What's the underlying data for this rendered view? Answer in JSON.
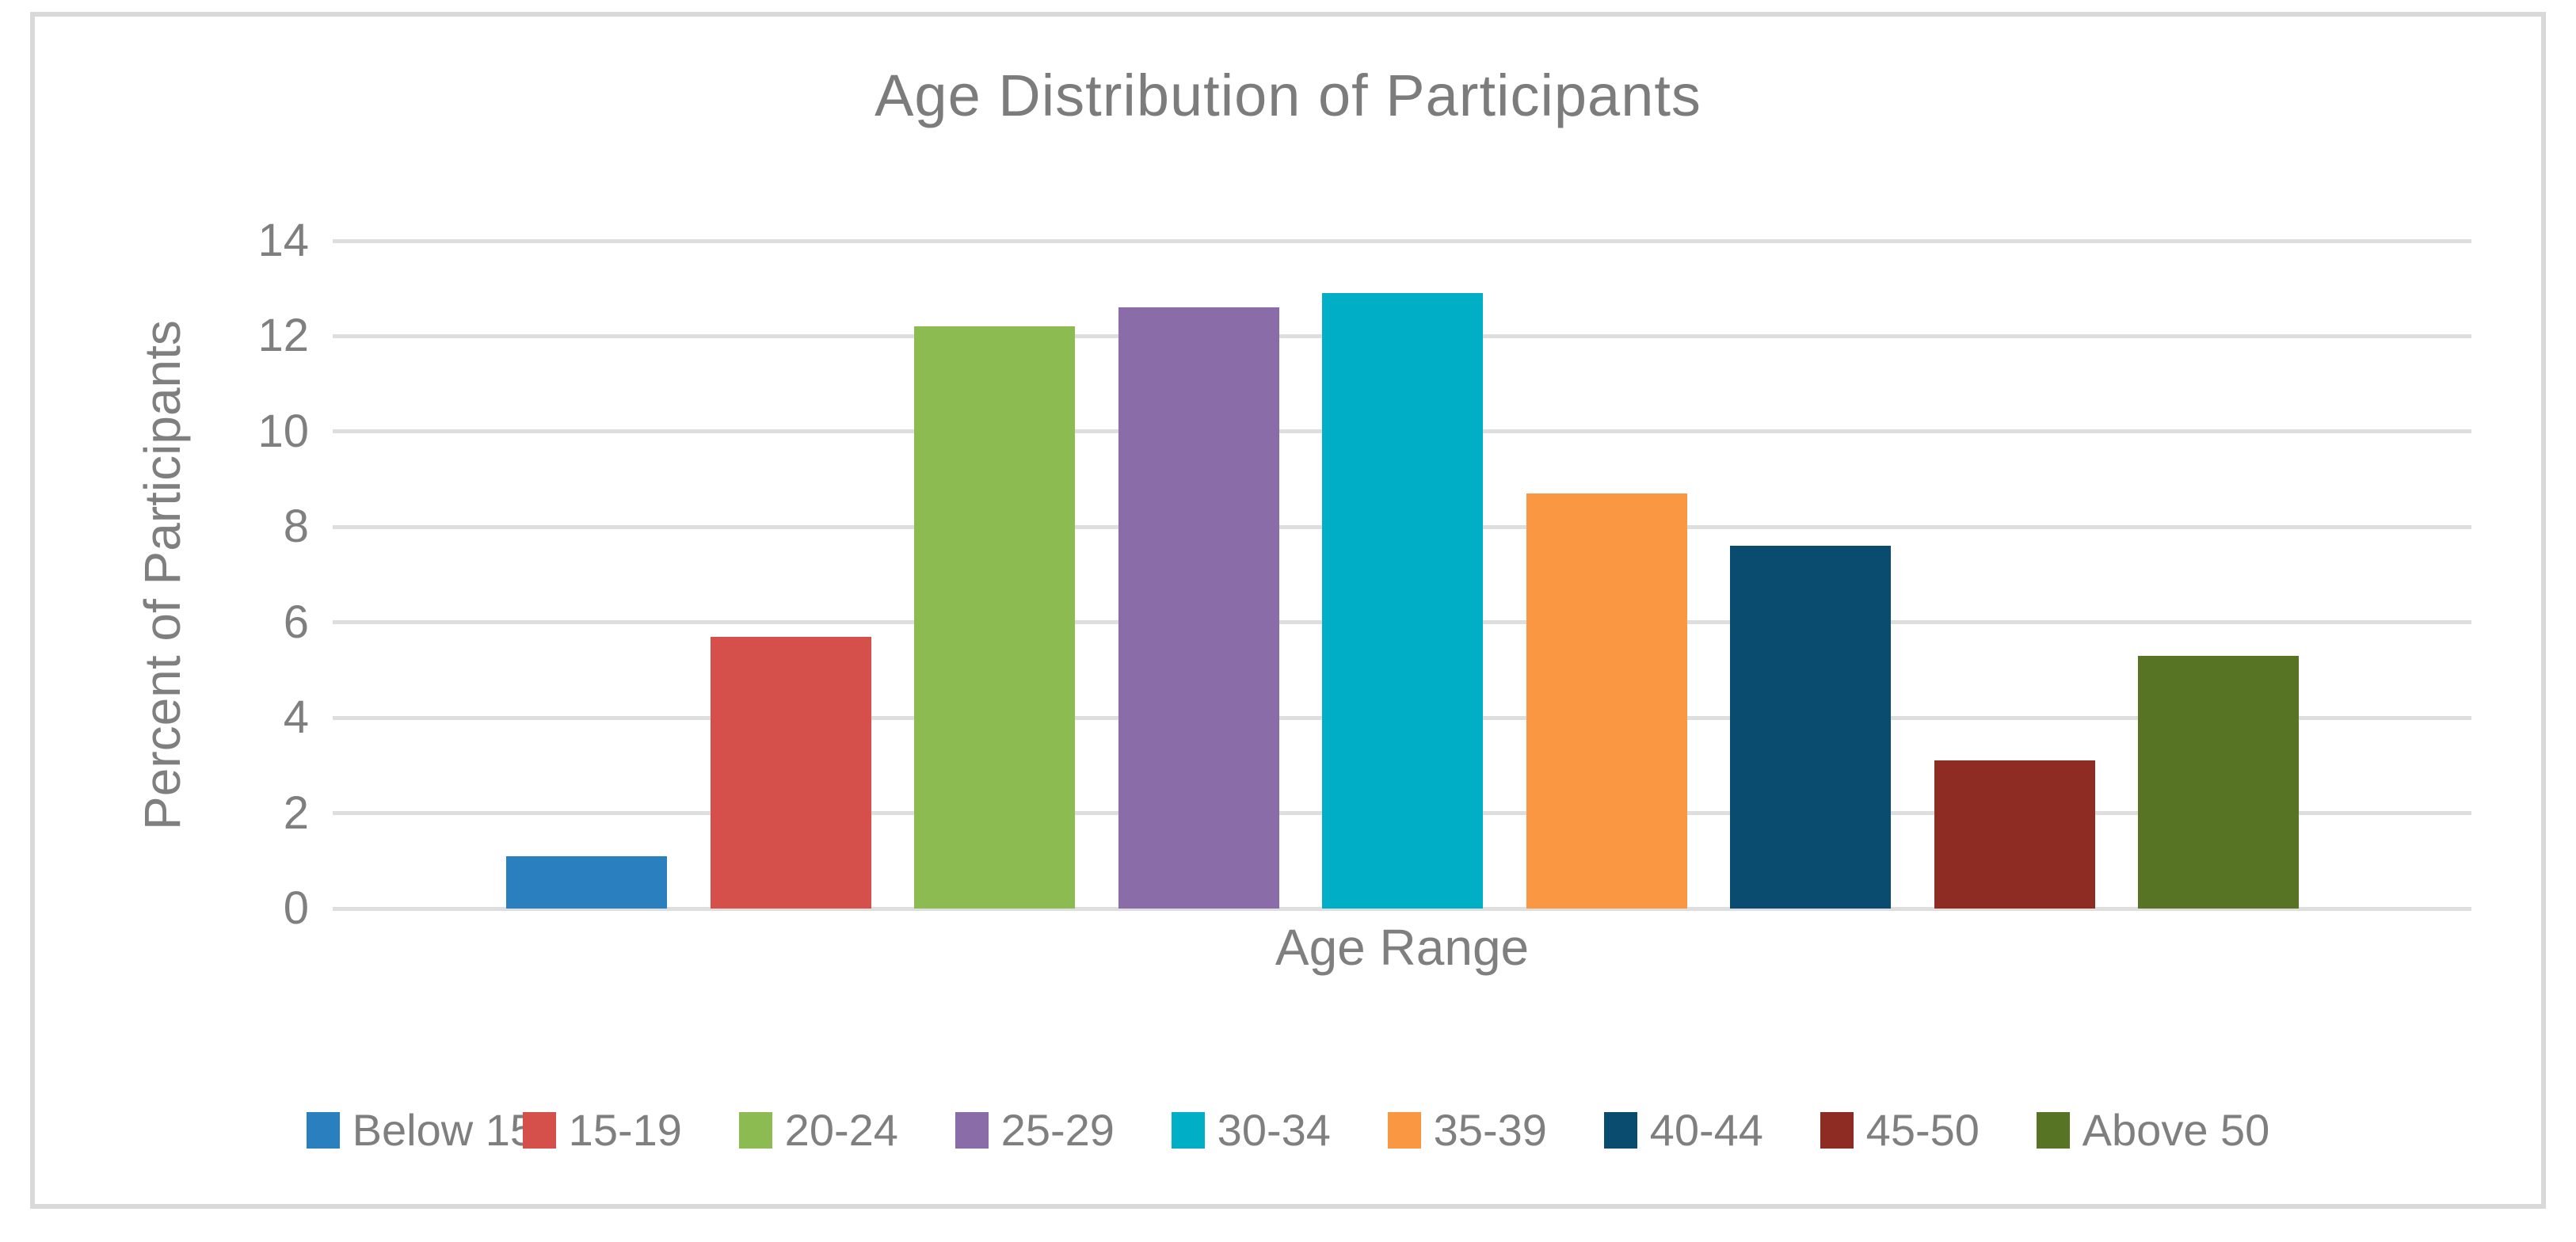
{
  "title": "Age Distribution of Participants",
  "chart_data": {
    "type": "bar",
    "title": "Age Distribution of Participants",
    "xlabel": "Age Range",
    "ylabel": "Percent of Participants",
    "categories": [
      "Below 15",
      "15-19",
      "20-24",
      "25-29",
      "30-34",
      "35-39",
      "40-44",
      "45-50",
      "Above 50"
    ],
    "values": [
      1.1,
      5.7,
      12.2,
      12.6,
      12.9,
      8.7,
      7.6,
      3.1,
      5.3
    ],
    "bar_colors": [
      "#2a7fbf",
      "#d5504b",
      "#8cbc51",
      "#8a6ca9",
      "#00aec6",
      "#f99743",
      "#0a4b70",
      "#8e2b23",
      "#567424"
    ],
    "ylim": [
      0,
      14
    ],
    "yticks": [
      0,
      2,
      4,
      6,
      8,
      10,
      12,
      14
    ],
    "grid": true,
    "legend_position": "bottom"
  },
  "legend": {
    "items": [
      {
        "label": "Below 15",
        "color": "#2a7fbf"
      },
      {
        "label": "15-19",
        "color": "#d5504b"
      },
      {
        "label": "20-24",
        "color": "#8cbc51"
      },
      {
        "label": "25-29",
        "color": "#8a6ca9"
      },
      {
        "label": "30-34",
        "color": "#00aec6"
      },
      {
        "label": "35-39",
        "color": "#f99743"
      },
      {
        "label": "40-44",
        "color": "#0a4b70"
      },
      {
        "label": "45-50",
        "color": "#8e2b23"
      },
      {
        "label": "Above 50",
        "color": "#567424"
      }
    ]
  },
  "style_colors": {
    "frame_border": "#d9d9d9",
    "gridline": "#dedede",
    "text": "#7f7f7f",
    "background": "#ffffff"
  }
}
